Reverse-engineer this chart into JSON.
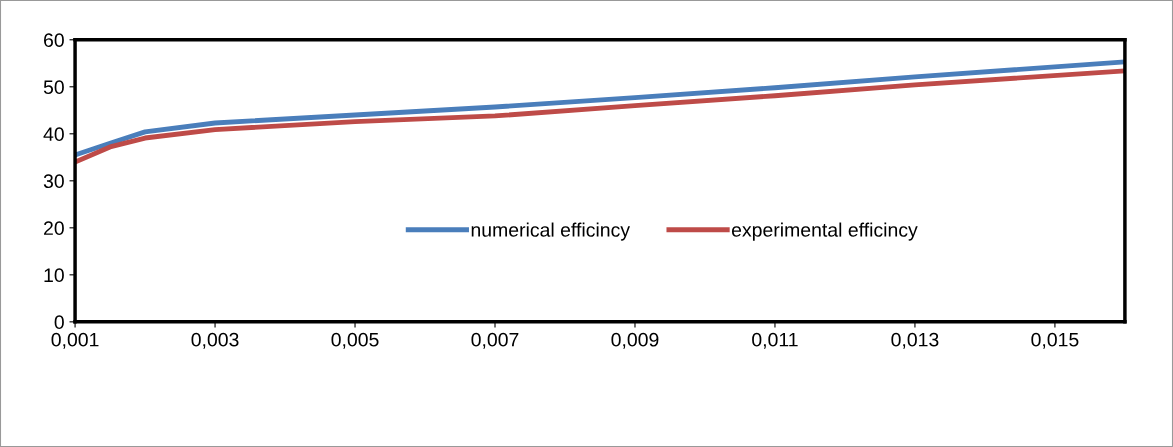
{
  "chart_data": {
    "type": "line",
    "x": [
      0.001,
      0.0015,
      0.002,
      0.003,
      0.005,
      0.007,
      0.009,
      0.011,
      0.013,
      0.016
    ],
    "series": [
      {
        "name": "numerical efficincy",
        "color": "#4a7ebb",
        "values": [
          35.5,
          38,
          40.4,
          42.3,
          44,
          45.7,
          47.7,
          49.8,
          52.1,
          55.3
        ]
      },
      {
        "name": "experimental efficincy",
        "color": "#be4b48",
        "values": [
          34,
          37.2,
          39.1,
          40.9,
          42.6,
          43.8,
          46,
          48.1,
          50.4,
          53.4
        ]
      }
    ],
    "xlim": [
      0.001,
      0.016
    ],
    "xticks": [
      {
        "value": 0.001,
        "label": "0,001"
      },
      {
        "value": 0.003,
        "label": "0,003"
      },
      {
        "value": 0.005,
        "label": "0,005"
      },
      {
        "value": 0.007,
        "label": "0,007"
      },
      {
        "value": 0.009,
        "label": "0,009"
      },
      {
        "value": 0.011,
        "label": "0,011"
      },
      {
        "value": 0.013,
        "label": "0,013"
      },
      {
        "value": 0.015,
        "label": "0,015"
      }
    ],
    "ylim": [
      0,
      60
    ],
    "yticks": [
      0,
      10,
      20,
      30,
      40,
      50,
      60
    ],
    "grid": false,
    "legend": "center",
    "marker": "none",
    "line_style": "solid"
  }
}
